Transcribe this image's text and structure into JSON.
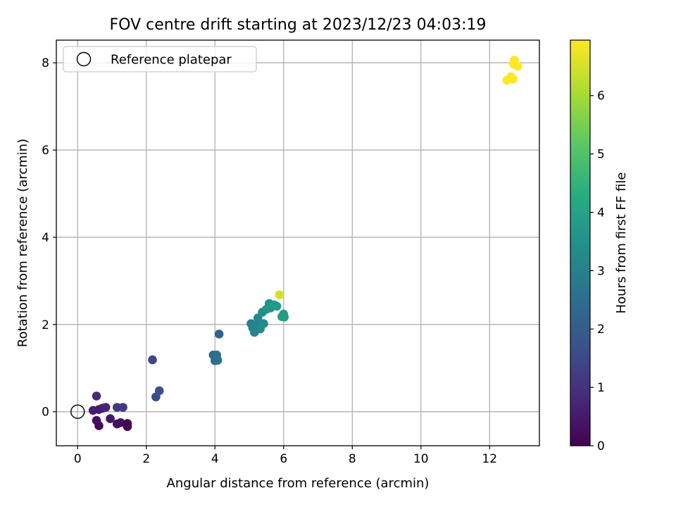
{
  "chart_data": {
    "type": "scatter",
    "title": "FOV centre drift starting at 2023/12/23 04:03:19",
    "xlabel": "Angular distance from reference (arcmin)",
    "ylabel": "Rotation from reference (arcmin)",
    "xlim": [
      -0.62,
      13.45
    ],
    "ylim": [
      -0.78,
      8.52
    ],
    "xticks": [
      0,
      2,
      4,
      6,
      8,
      10,
      12
    ],
    "yticks": [
      0,
      2,
      4,
      6,
      8
    ],
    "grid": true,
    "legend": {
      "location": "upper-left",
      "entries": [
        "Reference platepar"
      ]
    },
    "reference_point": {
      "label": "Reference platepar",
      "x": 0,
      "y": 0
    },
    "colorbar": {
      "label": "Hours from first FF file",
      "colormap": "viridis",
      "range": [
        0,
        6.95
      ],
      "ticks": [
        0,
        1,
        2,
        3,
        4,
        5,
        6
      ]
    },
    "points": [
      {
        "x": 0.45,
        "y": 0.03,
        "hours": 0.6
      },
      {
        "x": 0.55,
        "y": 0.36,
        "hours": 0.8
      },
      {
        "x": 0.55,
        "y": -0.2,
        "hours": 0.3
      },
      {
        "x": 0.62,
        "y": -0.32,
        "hours": 0.2
      },
      {
        "x": 0.62,
        "y": 0.05,
        "hours": 0.5
      },
      {
        "x": 0.72,
        "y": 0.08,
        "hours": 0.6
      },
      {
        "x": 0.82,
        "y": 0.1,
        "hours": 0.7
      },
      {
        "x": 0.95,
        "y": -0.16,
        "hours": 0.4
      },
      {
        "x": 1.15,
        "y": -0.28,
        "hours": 0.3
      },
      {
        "x": 1.15,
        "y": 0.1,
        "hours": 1.1
      },
      {
        "x": 1.25,
        "y": -0.25,
        "hours": 0.25
      },
      {
        "x": 1.32,
        "y": 0.1,
        "hours": 1.2
      },
      {
        "x": 1.45,
        "y": -0.27,
        "hours": 0.1
      },
      {
        "x": 1.45,
        "y": -0.34,
        "hours": 0.05
      },
      {
        "x": 2.18,
        "y": 1.19,
        "hours": 1.5
      },
      {
        "x": 2.28,
        "y": 0.34,
        "hours": 1.6
      },
      {
        "x": 2.38,
        "y": 0.48,
        "hours": 1.7
      },
      {
        "x": 3.95,
        "y": 1.3,
        "hours": 2.4
      },
      {
        "x": 4.0,
        "y": 1.17,
        "hours": 2.5
      },
      {
        "x": 4.05,
        "y": 1.3,
        "hours": 2.5
      },
      {
        "x": 4.08,
        "y": 1.18,
        "hours": 2.6
      },
      {
        "x": 4.12,
        "y": 1.78,
        "hours": 2.2
      },
      {
        "x": 5.05,
        "y": 2.02,
        "hours": 3.0
      },
      {
        "x": 5.1,
        "y": 1.92,
        "hours": 3.1
      },
      {
        "x": 5.15,
        "y": 1.82,
        "hours": 3.2
      },
      {
        "x": 5.22,
        "y": 1.98,
        "hours": 3.1
      },
      {
        "x": 5.25,
        "y": 2.15,
        "hours": 3.2
      },
      {
        "x": 5.32,
        "y": 1.9,
        "hours": 3.3
      },
      {
        "x": 5.38,
        "y": 2.28,
        "hours": 3.4
      },
      {
        "x": 5.42,
        "y": 2.02,
        "hours": 3.3
      },
      {
        "x": 5.5,
        "y": 2.35,
        "hours": 3.5
      },
      {
        "x": 5.58,
        "y": 2.48,
        "hours": 3.5
      },
      {
        "x": 5.62,
        "y": 2.38,
        "hours": 3.6
      },
      {
        "x": 5.72,
        "y": 2.45,
        "hours": 3.7
      },
      {
        "x": 5.8,
        "y": 2.42,
        "hours": 3.75
      },
      {
        "x": 5.95,
        "y": 2.18,
        "hours": 3.8
      },
      {
        "x": 6.0,
        "y": 2.24,
        "hours": 3.8
      },
      {
        "x": 6.02,
        "y": 2.17,
        "hours": 3.9
      },
      {
        "x": 5.88,
        "y": 2.68,
        "hours": 6.5
      },
      {
        "x": 12.5,
        "y": 7.6,
        "hours": 6.95
      },
      {
        "x": 12.62,
        "y": 7.68,
        "hours": 6.9
      },
      {
        "x": 12.68,
        "y": 7.63,
        "hours": 6.92
      },
      {
        "x": 12.7,
        "y": 7.97,
        "hours": 6.93
      },
      {
        "x": 12.72,
        "y": 8.06,
        "hours": 6.94
      },
      {
        "x": 12.82,
        "y": 7.92,
        "hours": 6.95
      }
    ]
  }
}
